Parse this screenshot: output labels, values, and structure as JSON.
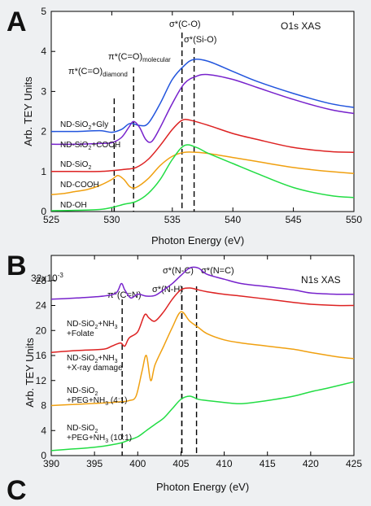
{
  "chart_data": [
    {
      "type": "line",
      "panel_letter": "A",
      "corner_label": "O1s XAS",
      "xlabel": "Photon Energy (eV)",
      "ylabel": "Arb. TEY Units",
      "xlim": [
        525,
        550
      ],
      "ylim": [
        0,
        5
      ],
      "xticks": [
        525,
        530,
        535,
        540,
        545,
        550
      ],
      "yticks": [
        0,
        1,
        2,
        3,
        4,
        5
      ],
      "annotations": [
        {
          "x": 530.2,
          "label": "π*(C=O)",
          "sub": "diamond"
        },
        {
          "x": 531.8,
          "label": "π*(C=O)",
          "sub": "molecular"
        },
        {
          "x": 535.8,
          "label": "σ*(C-O)",
          "sub": ""
        },
        {
          "x": 536.8,
          "label": "σ*(Si-O)",
          "sub": ""
        }
      ],
      "series": [
        {
          "color": "#2255dd",
          "label_main": "ND-SiO",
          "label_sub": "2",
          "label_tail": "+Gly",
          "x": [
            525,
            527,
            529,
            530,
            530.8,
            531.5,
            532.3,
            533,
            534,
            535,
            536,
            536.8,
            538,
            540,
            542,
            545,
            548,
            550
          ],
          "y": [
            2.0,
            2.0,
            2.02,
            1.98,
            2.05,
            2.2,
            2.15,
            2.2,
            2.7,
            3.3,
            3.65,
            3.8,
            3.75,
            3.5,
            3.25,
            2.95,
            2.7,
            2.6
          ]
        },
        {
          "color": "#7722cc",
          "label_main": "ND-SiO",
          "label_sub": "2",
          "label_tail": "+COOH",
          "x": [
            525,
            527,
            529,
            530,
            530.8,
            531.4,
            531.8,
            532.3,
            532.8,
            533.3,
            534,
            535,
            536,
            537,
            538,
            540,
            542,
            545,
            548,
            550
          ],
          "y": [
            1.68,
            1.68,
            1.7,
            1.72,
            1.85,
            2.1,
            2.25,
            2.1,
            1.8,
            1.75,
            2.1,
            2.7,
            3.2,
            3.38,
            3.42,
            3.3,
            3.1,
            2.8,
            2.55,
            2.45
          ]
        },
        {
          "color": "#dd2222",
          "label_main": "ND-SiO",
          "label_sub": "2",
          "label_tail": "",
          "x": [
            525,
            527,
            529,
            530,
            531,
            532,
            533,
            534,
            535,
            535.8,
            536.5,
            538,
            540,
            542,
            545,
            548,
            550
          ],
          "y": [
            1.0,
            1.0,
            1.0,
            1.02,
            1.05,
            1.1,
            1.3,
            1.65,
            2.05,
            2.28,
            2.28,
            2.15,
            1.95,
            1.8,
            1.6,
            1.5,
            1.48
          ]
        },
        {
          "color": "#f0a010",
          "label_main": "ND-COOH",
          "label_sub": "",
          "label_tail": "",
          "x": [
            525,
            526,
            527,
            528,
            529,
            530,
            530.5,
            531,
            531.5,
            532,
            533,
            534,
            535,
            536,
            537,
            538,
            540,
            542,
            545,
            548,
            550
          ],
          "y": [
            0.42,
            0.45,
            0.5,
            0.55,
            0.65,
            0.8,
            0.9,
            0.8,
            0.62,
            0.6,
            0.82,
            1.15,
            1.38,
            1.48,
            1.48,
            1.45,
            1.35,
            1.25,
            1.1,
            1.0,
            0.95
          ]
        },
        {
          "color": "#22dd44",
          "label_main": "ND-OH",
          "label_sub": "",
          "label_tail": "",
          "x": [
            525,
            527,
            529,
            530,
            531,
            532,
            533,
            534,
            535,
            536,
            537,
            538,
            540,
            542,
            545,
            548,
            550
          ],
          "y": [
            0.02,
            0.03,
            0.05,
            0.1,
            0.18,
            0.25,
            0.45,
            0.8,
            1.3,
            1.65,
            1.6,
            1.45,
            1.2,
            0.95,
            0.6,
            0.4,
            0.35
          ]
        }
      ]
    },
    {
      "type": "line",
      "panel_letter": "B",
      "corner_label": "N1s XAS",
      "xlabel": "Photon Energy (eV)",
      "ylabel": "Arb. TEY Units",
      "y_multiplier": "x10",
      "y_exponent": "-3",
      "xlim": [
        390,
        425
      ],
      "ylim": [
        0,
        32
      ],
      "xticks": [
        390,
        395,
        400,
        405,
        410,
        415,
        420,
        425
      ],
      "yticks": [
        0,
        4,
        8,
        12,
        16,
        20,
        24,
        28,
        32
      ],
      "top_tick_label": "32",
      "annotations": [
        {
          "x": 398.2,
          "label": "π*(C=N)",
          "label_dy": 29
        },
        {
          "x": 405.1,
          "label": "σ*(N-H)",
          "label_dy": 23
        },
        {
          "x": 405.1,
          "label": "σ*(N-C)",
          "label_dy": 3
        },
        {
          "x": 406.8,
          "label": "σ*(N=C)",
          "label_dy": 3
        }
      ],
      "series": [
        {
          "color": "#7722cc",
          "label_lines": [
            "ND-SiO|2|+NH|3",
            "+Folate"
          ],
          "x": [
            390,
            393,
            396,
            397.5,
            398.1,
            398.5,
            399.2,
            400,
            401,
            402,
            403,
            404,
            405,
            406,
            407,
            408,
            410,
            412,
            415,
            418,
            420,
            423,
            425
          ],
          "y": [
            25.0,
            25.2,
            25.5,
            26.0,
            27.5,
            26.5,
            25.2,
            25.8,
            25.5,
            25.6,
            26.5,
            27.5,
            28.8,
            30.0,
            30.0,
            29.0,
            28.2,
            27.5,
            27.0,
            26.5,
            26.0,
            25.8,
            25.8
          ]
        },
        {
          "color": "#dd2222",
          "label_lines": [
            "ND-SiO|2|+NH|3",
            "+X-ray damage"
          ],
          "x": [
            390,
            393,
            396,
            397,
            398,
            398.5,
            399,
            400,
            400.8,
            401.3,
            402,
            403,
            404,
            405,
            406,
            407,
            408,
            410,
            412,
            415,
            418,
            420,
            423,
            425
          ],
          "y": [
            16.5,
            16.8,
            17.0,
            17.5,
            18.0,
            17.5,
            18.8,
            19.8,
            22.5,
            22.0,
            21.5,
            23.0,
            25.0,
            26.5,
            26.8,
            26.5,
            26.2,
            25.8,
            25.5,
            25.0,
            24.5,
            24.2,
            24.0,
            24.0
          ]
        },
        {
          "color": "#f0a010",
          "label_lines": [
            "ND-SiO|2",
            "+PEG+NH|3| (4:1)"
          ],
          "x": [
            390,
            393,
            396,
            398,
            399,
            399.8,
            400.5,
            401,
            401.5,
            402,
            403,
            404,
            405,
            406,
            407,
            408,
            410,
            412,
            415,
            418,
            420,
            423,
            425
          ],
          "y": [
            8.0,
            8.2,
            8.4,
            8.6,
            8.8,
            9.5,
            13.5,
            16.0,
            12.0,
            14.5,
            17.5,
            20.5,
            23.0,
            21.5,
            20.5,
            19.5,
            18.5,
            18.0,
            17.5,
            17.0,
            16.5,
            15.8,
            15.5
          ]
        },
        {
          "color": "#22dd44",
          "label_lines": [
            "ND-SiO|2",
            "+PEG+NH|3| (10:1)"
          ],
          "x": [
            390,
            392,
            394,
            396,
            398,
            399,
            400,
            401,
            402,
            403,
            404,
            405,
            406,
            407,
            408,
            410,
            412,
            415,
            418,
            420,
            422,
            425
          ],
          "y": [
            0.8,
            1.0,
            1.2,
            1.5,
            2.0,
            2.5,
            3.0,
            4.0,
            5.0,
            6.0,
            7.5,
            9.0,
            9.5,
            9.0,
            8.8,
            8.5,
            8.3,
            8.8,
            9.5,
            10.2,
            10.8,
            11.8
          ]
        }
      ]
    }
  ],
  "panel_c_letter": "C",
  "panel_a_labels": [
    "ND-SiO|2|+Gly",
    "ND-SiO|2|+COOH",
    "ND-SiO|2",
    "ND-COOH",
    "ND-OH"
  ]
}
